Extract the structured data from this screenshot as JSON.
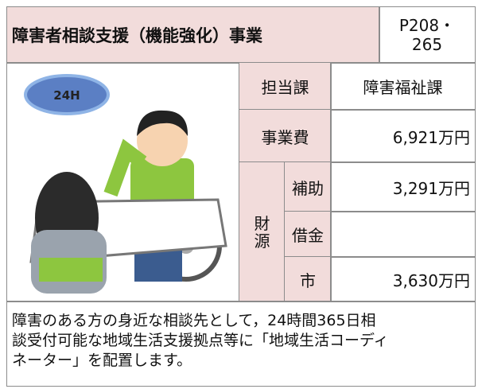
{
  "header": {
    "title": "障害者相談支援（機能強化）事業",
    "page_lines": [
      "P208・",
      "265"
    ]
  },
  "illustration": {
    "badge": "24H"
  },
  "table": {
    "department": {
      "label": "担当課",
      "value": "障害福祉課"
    },
    "cost": {
      "label": "事業費",
      "value": "6,921万円"
    },
    "funding": {
      "label_lines": [
        "財",
        "源"
      ],
      "rows": [
        {
          "label": "補助",
          "value": "3,291万円"
        },
        {
          "label": "借金",
          "value": null
        },
        {
          "label": "市",
          "value": "3,630万円"
        }
      ]
    }
  },
  "description": {
    "lines": [
      "障害のある方の身近な相談先として，24時間365日相",
      "談受付可能な地域生活支援拠点等に「地域生活コーディ",
      "ネーター」を配置します。"
    ]
  }
}
